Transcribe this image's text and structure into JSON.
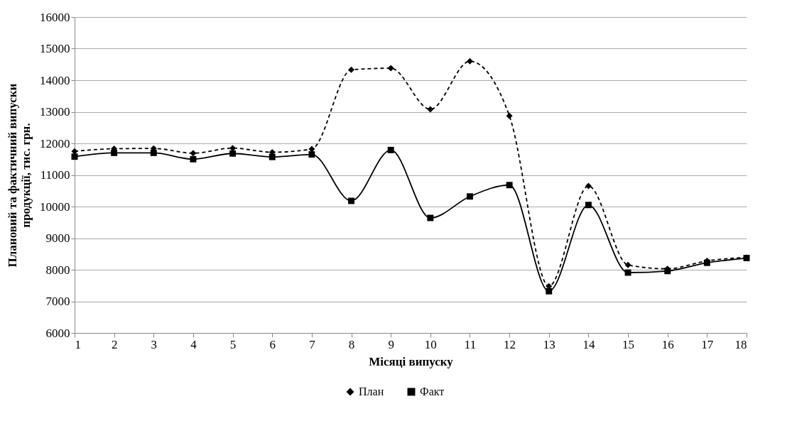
{
  "chart_data": {
    "type": "line",
    "xlabel": "Місяці випуску",
    "ylabel": "Плановий та фактичний випуски\nпродукції, тис. грн.",
    "x": [
      1,
      2,
      3,
      4,
      5,
      6,
      7,
      8,
      9,
      10,
      11,
      12,
      13,
      14,
      15,
      16,
      17,
      18
    ],
    "xlim": [
      1,
      18
    ],
    "xticks": [
      1,
      2,
      3,
      4,
      5,
      6,
      7,
      8,
      9,
      10,
      11,
      12,
      13,
      14,
      15,
      16,
      17,
      18
    ],
    "ylim": [
      6000,
      16000
    ],
    "yticks": [
      6000,
      7000,
      8000,
      9000,
      10000,
      11000,
      12000,
      13000,
      14000,
      15000,
      16000
    ],
    "grid": "y",
    "legend": "bottom",
    "series": [
      {
        "name": "План",
        "color": "#000000",
        "marker": "diamond",
        "line_style": "dashed",
        "values": [
          11750,
          11830,
          11840,
          11690,
          11850,
          11720,
          11820,
          14330,
          14380,
          13080,
          14600,
          12870,
          7480,
          10650,
          8150,
          8030,
          8280,
          8390
        ]
      },
      {
        "name": "Факт",
        "color": "#000000",
        "marker": "square",
        "line_style": "solid",
        "values": [
          11580,
          11700,
          11700,
          11500,
          11680,
          11570,
          11650,
          10180,
          11790,
          9640,
          10320,
          10680,
          7320,
          10050,
          7910,
          7960,
          8220,
          8370
        ]
      }
    ]
  }
}
